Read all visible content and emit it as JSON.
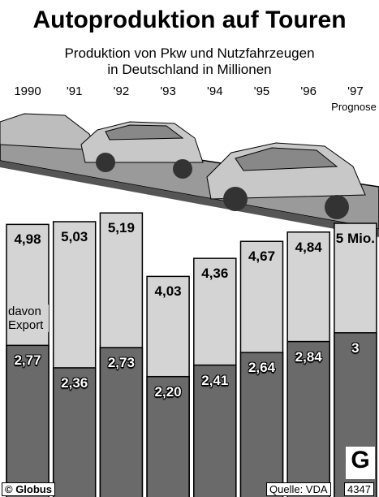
{
  "chart_data": {
    "type": "bar",
    "title": "Autoproduktion auf Touren",
    "subtitle": [
      "Produktion von Pkw und Nutzfahrzeugen",
      "in Deutschland in Millionen"
    ],
    "categories": [
      "1990",
      "'91",
      "'92",
      "'93",
      "'94",
      "'95",
      "'96",
      "'97"
    ],
    "forecast_note": "Prognose",
    "series": [
      {
        "color": "#d4d4d4",
        "values": [
          4.98,
          5.03,
          5.19,
          4.03,
          4.36,
          4.67,
          4.84,
          5
        ],
        "value_labels": [
          "4,98",
          "5,03",
          "5,19",
          "4,03",
          "4,36",
          "4,67",
          "4,84",
          "5 Mio."
        ]
      },
      {
        "name": "davon Export",
        "color": "#6a6a6a",
        "values": [
          2.77,
          2.36,
          2.73,
          2.2,
          2.41,
          2.64,
          2.84,
          3
        ],
        "value_labels": [
          "2,77",
          "2,36",
          "2,73",
          "2,20",
          "2,41",
          "2,64",
          "2,84",
          "3"
        ]
      }
    ],
    "credit": "© Globus",
    "source": "Quelle: VDA",
    "graphic_id": "4347"
  }
}
